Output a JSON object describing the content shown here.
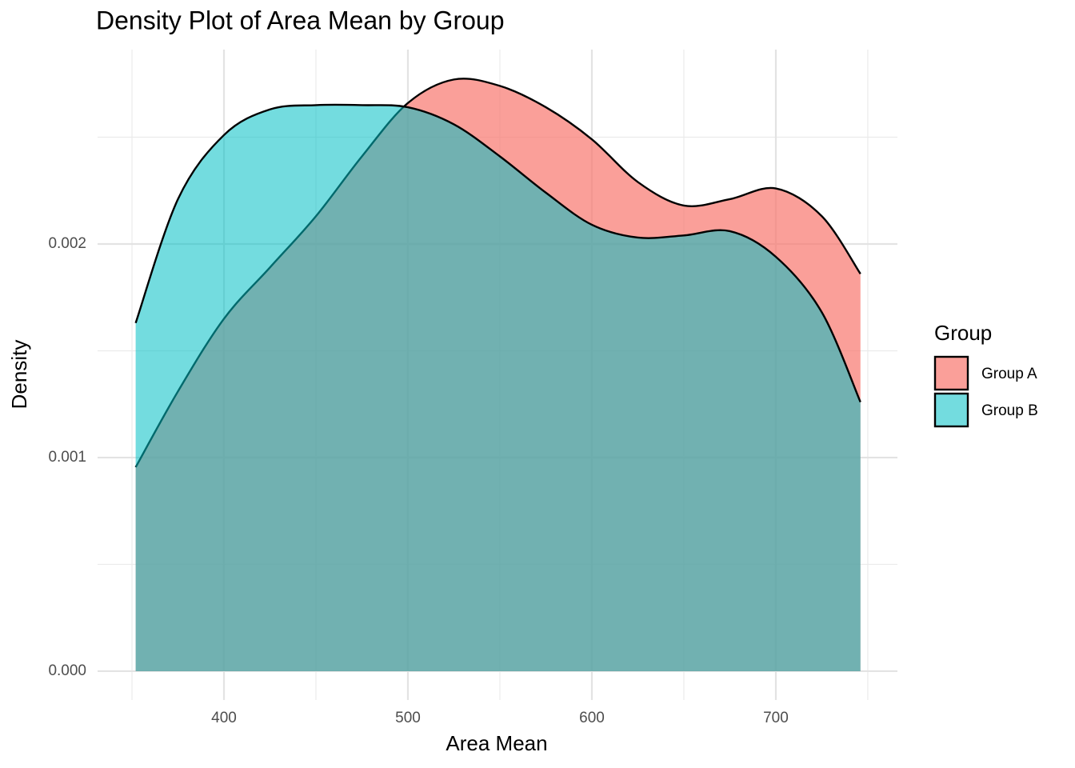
{
  "chart_data": {
    "type": "density",
    "title": "Density Plot of Area Mean by Group",
    "x_label": "Area Mean",
    "y_label": "Density",
    "legend_title": "Group",
    "legend_position": "right",
    "grid": true,
    "x": [
      352,
      375,
      400,
      425,
      450,
      475,
      500,
      525,
      550,
      575,
      600,
      625,
      650,
      675,
      700,
      725,
      746
    ],
    "series": [
      {
        "name": "Group A",
        "color": "#F8766D",
        "values": [
          0.000955,
          0.00131,
          0.00165,
          0.00189,
          0.00213,
          0.00241,
          0.00266,
          0.00277,
          0.00274,
          0.00264,
          0.00249,
          0.00229,
          0.00218,
          0.00221,
          0.00226,
          0.00213,
          0.00186
        ]
      },
      {
        "name": "Group B",
        "color": "#00BFC4",
        "values": [
          0.00163,
          0.00221,
          0.00251,
          0.00263,
          0.00265,
          0.00265,
          0.00264,
          0.00256,
          0.00241,
          0.00224,
          0.00209,
          0.00203,
          0.00204,
          0.00206,
          0.00194,
          0.00168,
          0.00126
        ]
      }
    ],
    "xlim": [
      331.3,
      766.1
    ],
    "ylim": [
      -0.000135,
      0.00291
    ],
    "xticks": [
      400,
      500,
      600,
      700
    ],
    "yticks": [
      {
        "value": 0,
        "label": "0.000"
      },
      {
        "value": 0.001,
        "label": "0.001"
      },
      {
        "value": 0.002,
        "label": "0.002"
      }
    ],
    "minor_xticks": [
      350,
      450,
      550,
      650,
      750
    ],
    "minor_yticks": [
      0.0005,
      0.0015,
      0.0025
    ]
  }
}
